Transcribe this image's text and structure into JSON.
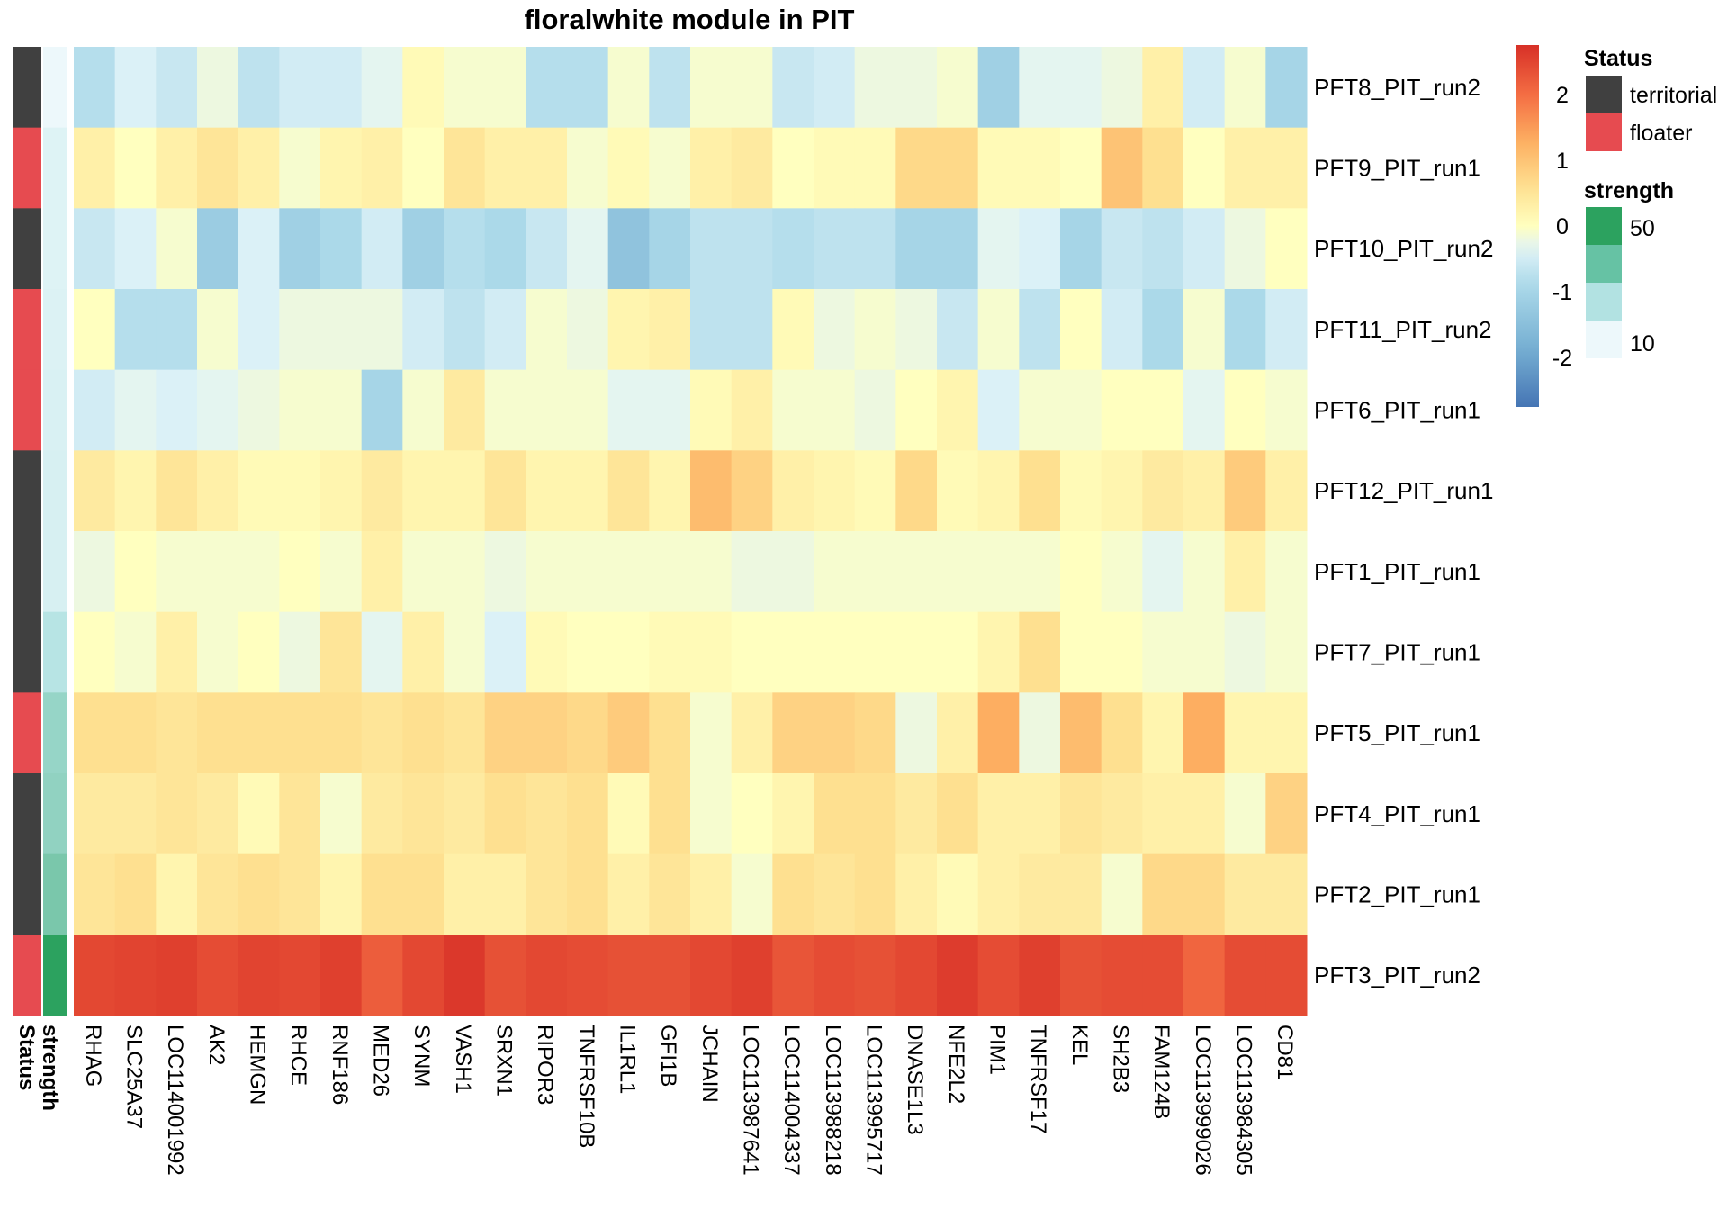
{
  "chart_data": {
    "type": "heatmap",
    "title": "floralwhite module in PIT",
    "columns": [
      "RHAG",
      "SLC25A37",
      "LOC114001992",
      "AK2",
      "HEMGN",
      "RHCE",
      "RNF186",
      "MED26",
      "SYNM",
      "VASH1",
      "SRXN1",
      "RIPOR3",
      "TNFRSF10B",
      "IL1RL1",
      "GFI1B",
      "JCHAIN",
      "LOC113987641",
      "LOC114004337",
      "LOC113988218",
      "LOC113995717",
      "DNASE1L3",
      "NFE2L2",
      "PIM1",
      "TNFRSF17",
      "KEL",
      "SH2B3",
      "FAM124B",
      "LOC113999026",
      "LOC113984305",
      "CD81"
    ],
    "rows": [
      {
        "name": "PFT8_PIT_run2",
        "status": "territorial",
        "strength": 8,
        "values": [
          -0.8,
          -0.4,
          -0.6,
          -0.2,
          -0.7,
          -0.5,
          -0.5,
          -0.3,
          0.1,
          -0.1,
          -0.1,
          -0.8,
          -0.8,
          -0.1,
          -0.7,
          -0.1,
          -0.1,
          -0.6,
          -0.5,
          -0.2,
          -0.2,
          -0.1,
          -1.1,
          -0.3,
          -0.3,
          -0.2,
          0.3,
          -0.5,
          -0.1,
          -1.0
        ]
      },
      {
        "name": "PFT9_PIT_run1",
        "status": "floater",
        "strength": 14,
        "values": [
          0.3,
          0.0,
          0.3,
          0.5,
          0.3,
          -0.1,
          0.2,
          0.3,
          0.0,
          0.5,
          0.3,
          0.3,
          -0.1,
          0.1,
          -0.1,
          0.3,
          0.4,
          0.0,
          0.1,
          0.1,
          0.7,
          0.7,
          0.1,
          0.1,
          0.0,
          1.0,
          0.6,
          0.0,
          0.3,
          0.3
        ]
      },
      {
        "name": "PFT10_PIT_run2",
        "status": "territorial",
        "strength": 14,
        "values": [
          -0.6,
          -0.4,
          -0.1,
          -1.2,
          -0.4,
          -1.1,
          -0.9,
          -0.5,
          -1.1,
          -0.8,
          -0.9,
          -0.6,
          -0.3,
          -1.4,
          -1.0,
          -0.7,
          -0.7,
          -0.8,
          -0.7,
          -0.7,
          -1.0,
          -1.0,
          -0.3,
          -0.4,
          -1.0,
          -0.6,
          -0.7,
          -0.5,
          -0.2,
          0.0
        ]
      },
      {
        "name": "PFT11_PIT_run2",
        "status": "floater",
        "strength": 15,
        "values": [
          0.0,
          -0.8,
          -0.8,
          -0.1,
          -0.4,
          -0.2,
          -0.2,
          -0.2,
          -0.5,
          -0.7,
          -0.5,
          -0.1,
          -0.2,
          0.2,
          0.3,
          -0.7,
          -0.7,
          0.1,
          -0.2,
          -0.1,
          -0.2,
          -0.6,
          -0.1,
          -0.7,
          0.0,
          -0.5,
          -0.9,
          -0.1,
          -0.9,
          -0.5
        ]
      },
      {
        "name": "PFT6_PIT_run1",
        "status": "floater",
        "strength": 16,
        "values": [
          -0.5,
          -0.3,
          -0.4,
          -0.3,
          -0.2,
          -0.1,
          -0.1,
          -1.0,
          -0.1,
          0.4,
          -0.1,
          -0.1,
          -0.1,
          -0.3,
          -0.3,
          0.1,
          0.3,
          -0.1,
          -0.1,
          -0.2,
          0.0,
          0.2,
          -0.4,
          -0.1,
          -0.1,
          0.0,
          0.0,
          -0.3,
          0.0,
          -0.1
        ]
      },
      {
        "name": "PFT12_PIT_run1",
        "status": "territorial",
        "strength": 17,
        "values": [
          0.4,
          0.2,
          0.5,
          0.3,
          0.1,
          0.1,
          0.2,
          0.4,
          0.2,
          0.2,
          0.5,
          0.2,
          0.2,
          0.5,
          0.2,
          1.1,
          0.8,
          0.3,
          0.2,
          0.1,
          0.7,
          0.1,
          0.2,
          0.6,
          0.1,
          0.2,
          0.4,
          0.3,
          0.9,
          0.3
        ]
      },
      {
        "name": "PFT1_PIT_run1",
        "status": "territorial",
        "strength": 17,
        "values": [
          -0.2,
          0.0,
          -0.1,
          -0.1,
          -0.1,
          0.0,
          -0.1,
          0.3,
          -0.1,
          -0.1,
          -0.2,
          -0.1,
          -0.1,
          -0.1,
          -0.1,
          -0.1,
          -0.2,
          -0.2,
          -0.1,
          -0.1,
          -0.1,
          -0.1,
          -0.1,
          -0.1,
          0.0,
          -0.1,
          -0.3,
          -0.1,
          0.3,
          -0.1
        ]
      },
      {
        "name": "PFT7_PIT_run1",
        "status": "territorial",
        "strength": 30,
        "values": [
          0.0,
          -0.1,
          0.3,
          -0.1,
          0.0,
          -0.2,
          0.5,
          -0.3,
          0.3,
          -0.1,
          -0.4,
          0.1,
          0.0,
          0.0,
          0.1,
          0.1,
          0.0,
          0.0,
          0.0,
          0.0,
          0.0,
          0.0,
          0.2,
          0.6,
          0.0,
          0.0,
          -0.1,
          -0.1,
          -0.2,
          -0.1
        ]
      },
      {
        "name": "PFT5_PIT_run1",
        "status": "floater",
        "strength": 37,
        "values": [
          0.6,
          0.6,
          0.5,
          0.6,
          0.6,
          0.6,
          0.6,
          0.5,
          0.6,
          0.5,
          0.8,
          0.8,
          0.7,
          0.9,
          0.6,
          -0.1,
          0.3,
          0.8,
          0.8,
          0.7,
          -0.2,
          0.3,
          1.3,
          -0.2,
          1.1,
          0.6,
          0.2,
          1.3,
          0.2,
          0.2
        ]
      },
      {
        "name": "PFT4_PIT_run1",
        "status": "territorial",
        "strength": 38,
        "values": [
          0.4,
          0.4,
          0.5,
          0.4,
          0.1,
          0.5,
          -0.1,
          0.4,
          0.5,
          0.4,
          0.6,
          0.5,
          0.6,
          0.1,
          0.6,
          -0.1,
          0.0,
          0.2,
          0.6,
          0.6,
          0.4,
          0.6,
          0.3,
          0.3,
          0.5,
          0.4,
          0.3,
          0.3,
          -0.1,
          0.8
        ]
      },
      {
        "name": "PFT2_PIT_run1",
        "status": "territorial",
        "strength": 42,
        "values": [
          0.5,
          0.6,
          0.2,
          0.5,
          0.6,
          0.5,
          0.2,
          0.6,
          0.6,
          0.3,
          0.3,
          0.5,
          0.6,
          0.3,
          0.5,
          0.3,
          -0.1,
          0.6,
          0.5,
          0.6,
          0.3,
          0.1,
          0.3,
          0.4,
          0.4,
          -0.1,
          0.7,
          0.7,
          0.4,
          0.4
        ]
      },
      {
        "name": "PFT3_PIT_run2",
        "status": "floater",
        "strength": 56,
        "values": [
          2.45,
          2.5,
          2.55,
          2.4,
          2.5,
          2.45,
          2.55,
          2.2,
          2.45,
          2.65,
          2.35,
          2.45,
          2.4,
          2.35,
          2.35,
          2.45,
          2.55,
          2.3,
          2.4,
          2.35,
          2.45,
          2.6,
          2.4,
          2.55,
          2.35,
          2.4,
          2.4,
          2.1,
          2.4,
          2.4
        ]
      }
    ],
    "color_scale": {
      "min": -2.75,
      "max": 2.75,
      "ticks": [
        2,
        1,
        0,
        -1,
        -2
      ]
    },
    "annotations": [
      "Status",
      "strength"
    ],
    "legend": {
      "status": {
        "title": "Status",
        "items": [
          {
            "label": "territorial",
            "color": "#404040"
          },
          {
            "label": "floater",
            "color": "#E64B50"
          }
        ]
      },
      "strength": {
        "title": "strength",
        "labels": [
          "50",
          "10"
        ],
        "colors": [
          "#2CA25F",
          "#66C2A4",
          "#B2E2E2",
          "#EDF8FB"
        ]
      }
    }
  }
}
